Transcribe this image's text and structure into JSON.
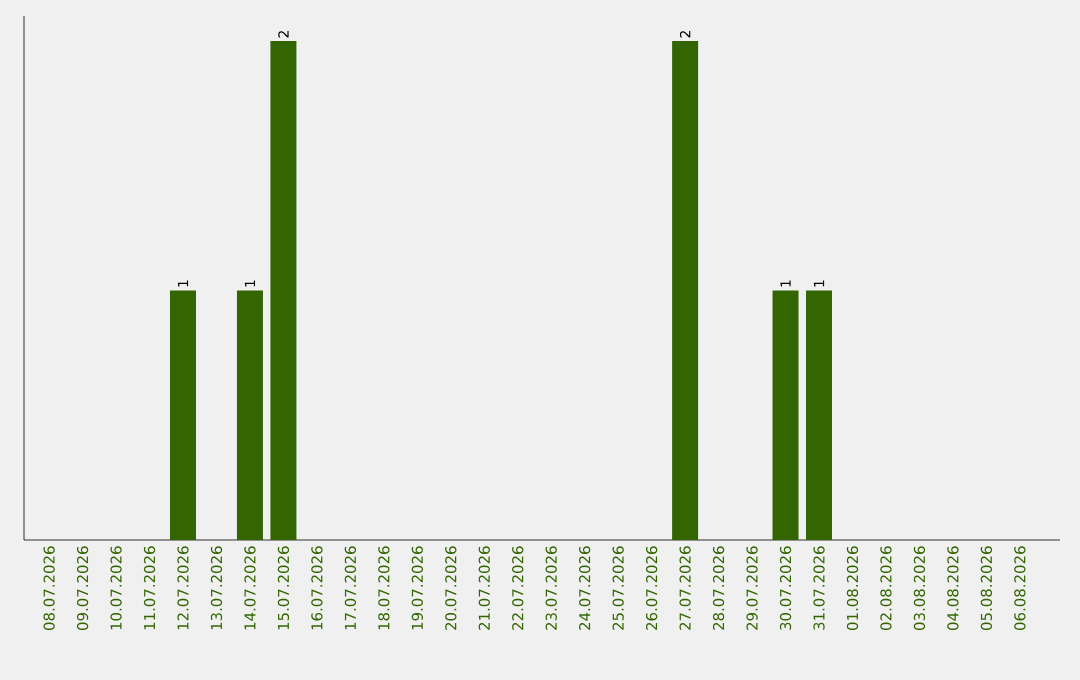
{
  "chart_data": {
    "type": "bar",
    "categories": [
      "08.07.2026",
      "09.07.2026",
      "10.07.2026",
      "11.07.2026",
      "12.07.2026",
      "13.07.2026",
      "14.07.2026",
      "15.07.2026",
      "16.07.2026",
      "17.07.2026",
      "18.07.2026",
      "19.07.2026",
      "20.07.2026",
      "21.07.2026",
      "22.07.2026",
      "23.07.2026",
      "24.07.2026",
      "25.07.2026",
      "26.07.2026",
      "27.07.2026",
      "28.07.2026",
      "29.07.2026",
      "30.07.2026",
      "31.07.2026",
      "01.08.2026",
      "02.08.2026",
      "03.08.2026",
      "04.08.2026",
      "05.08.2026",
      "06.08.2026"
    ],
    "values": [
      0,
      0,
      0,
      0,
      1,
      0,
      1,
      2,
      0,
      0,
      0,
      0,
      0,
      0,
      0,
      0,
      0,
      0,
      0,
      2,
      0,
      0,
      1,
      1,
      0,
      0,
      0,
      0,
      0,
      0
    ],
    "value_labels": [
      null,
      null,
      null,
      null,
      "1",
      null,
      "1",
      "2",
      null,
      null,
      null,
      null,
      null,
      null,
      null,
      null,
      null,
      null,
      null,
      "2",
      null,
      null,
      "1",
      "1",
      null,
      null,
      null,
      null,
      null,
      null
    ],
    "color": "#336600",
    "tick_labels": "x"
  }
}
